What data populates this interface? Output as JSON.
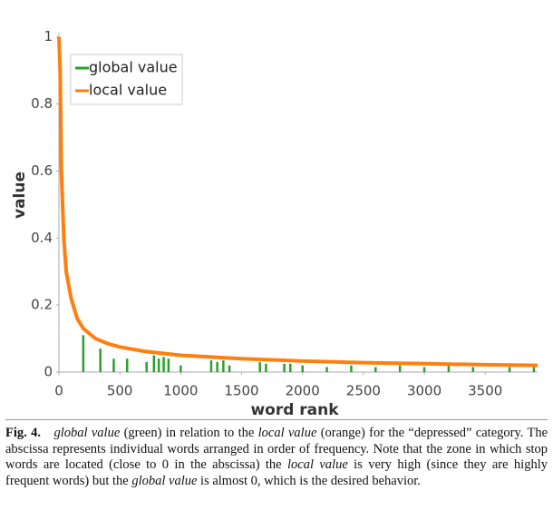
{
  "chart_data": {
    "type": "line",
    "x_label": "word rank",
    "y_label": "value",
    "xlim": [
      0,
      3930
    ],
    "ylim": [
      0,
      1.01
    ],
    "xticks": [
      0,
      500,
      1000,
      1500,
      2000,
      2500,
      3000,
      3500
    ],
    "yticks": [
      0,
      0.2,
      0.4,
      0.6,
      0.8,
      1
    ],
    "legend": "top-left",
    "series": [
      {
        "name": "global value",
        "color": "#2ca02c",
        "style": "stem",
        "x": [
          200,
          340,
          450,
          560,
          720,
          780,
          820,
          860,
          900,
          1000,
          1250,
          1300,
          1350,
          1400,
          1650,
          1700,
          1850,
          1900,
          2000,
          2200,
          2400,
          2600,
          2800,
          3000,
          3200,
          3400,
          3700,
          3900
        ],
        "values": [
          0.11,
          0.07,
          0.04,
          0.04,
          0.03,
          0.05,
          0.04,
          0.045,
          0.04,
          0.02,
          0.035,
          0.03,
          0.035,
          0.02,
          0.03,
          0.025,
          0.025,
          0.025,
          0.02,
          0.015,
          0.02,
          0.015,
          0.02,
          0.015,
          0.02,
          0.015,
          0.015,
          0.015
        ]
      },
      {
        "name": "local value",
        "color": "#ff7f0e",
        "style": "line",
        "x": [
          0,
          10,
          20,
          40,
          60,
          100,
          150,
          200,
          300,
          400,
          500,
          700,
          1000,
          1500,
          2000,
          2500,
          3000,
          3500,
          3930
        ],
        "values": [
          1.0,
          0.9,
          0.6,
          0.4,
          0.3,
          0.22,
          0.16,
          0.13,
          0.1,
          0.085,
          0.075,
          0.062,
          0.05,
          0.04,
          0.033,
          0.028,
          0.025,
          0.022,
          0.02
        ]
      }
    ]
  },
  "caption": {
    "label": "Fig. 4.",
    "segments": [
      {
        "text": "global value",
        "italic": true
      },
      {
        "text": " (green) in relation to the ",
        "italic": false
      },
      {
        "text": "local value",
        "italic": true
      },
      {
        "text": " (orange) for the “depressed” category. The abscissa represents individual words arranged in order of frequency. Note that the zone in which stop words are located (close to 0 in the abscissa) the ",
        "italic": false
      },
      {
        "text": "local value",
        "italic": true
      },
      {
        "text": " is very high (since they are highly frequent words) but the ",
        "italic": false
      },
      {
        "text": "global value",
        "italic": true
      },
      {
        "text": " is almost 0, which is the desired behavior.",
        "italic": false
      }
    ]
  }
}
